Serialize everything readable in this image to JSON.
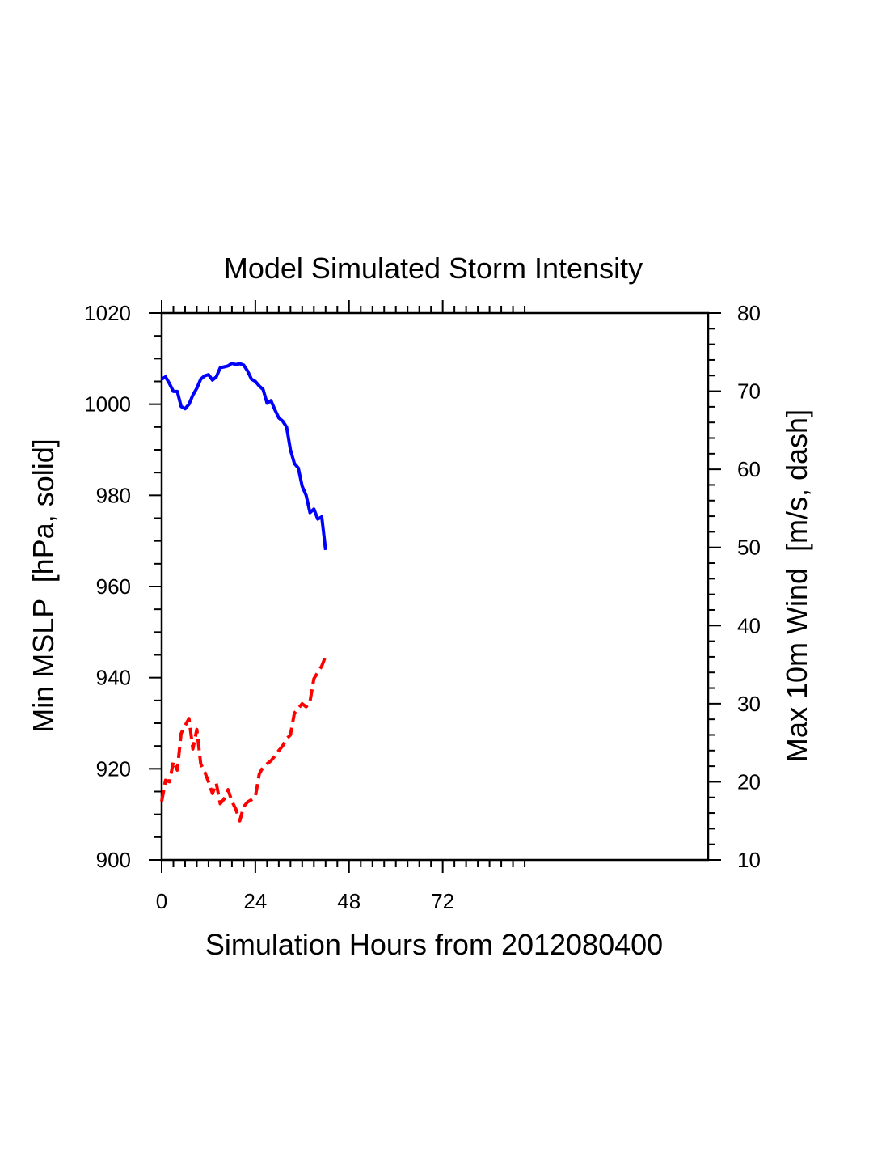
{
  "chart_data": {
    "type": "line",
    "title": "Model Simulated Storm Intensity",
    "xlabel": "Simulation Hours from 2012080400",
    "ylabel_left": "Min MSLP  [hPa, solid]",
    "ylabel_right": "Max 10m Wind  [m/s, dash]",
    "xlim": [
      0,
      140
    ],
    "ylim_left": [
      900,
      1020
    ],
    "ylim_right": [
      10,
      80
    ],
    "x_ticks": [
      0,
      24,
      48,
      72
    ],
    "y_ticks_left": [
      900,
      920,
      940,
      960,
      980,
      1000,
      1020
    ],
    "y_ticks_right": [
      10,
      20,
      30,
      40,
      50,
      60,
      70,
      80
    ],
    "grid": false,
    "series": [
      {
        "name": "Min MSLP",
        "axis": "left",
        "color": "#0000ff",
        "style": "solid",
        "x": [
          0,
          1,
          2,
          3,
          4,
          5,
          6,
          7,
          8,
          9,
          10,
          11,
          12,
          13,
          14,
          15,
          16,
          17,
          18,
          19,
          20,
          21,
          22,
          23,
          24,
          25,
          26,
          27,
          28,
          29,
          30,
          31,
          32,
          33,
          34,
          35,
          36,
          37,
          38,
          39,
          40,
          41,
          42
        ],
        "values": [
          1005.5,
          1006,
          1004.5,
          1002.8,
          1002.8,
          999.5,
          999,
          1000,
          1002,
          1003.5,
          1005.5,
          1006.2,
          1006.5,
          1005.3,
          1006,
          1008,
          1008.2,
          1008.4,
          1009,
          1008.7,
          1008.9,
          1008.6,
          1007.3,
          1005.5,
          1005,
          1004,
          1003.2,
          1000.2,
          1000.8,
          998.8,
          997,
          996.3,
          995,
          990,
          987,
          986,
          982,
          980,
          976.2,
          977,
          974.8,
          975.3,
          968
        ]
      },
      {
        "name": "Max 10m Wind",
        "axis": "right",
        "color": "#ff0000",
        "style": "dashed",
        "x": [
          0,
          1,
          2,
          3,
          4,
          5,
          6,
          7,
          8,
          9,
          10,
          11,
          12,
          13,
          14,
          15,
          16,
          17,
          18,
          19,
          20,
          21,
          22,
          23,
          24,
          25,
          26,
          27,
          28,
          29,
          30,
          31,
          32,
          33,
          34,
          35,
          36,
          37,
          38,
          39,
          40,
          41,
          42
        ],
        "values": [
          17.5,
          20.2,
          20,
          22.6,
          21.5,
          26.2,
          27.2,
          28.1,
          24.2,
          26.7,
          22.3,
          21.3,
          20,
          18.5,
          19.8,
          17.2,
          17.8,
          19,
          17.5,
          16.5,
          15,
          16.8,
          17.4,
          17.7,
          18.1,
          21,
          21.9,
          22.3,
          22.7,
          23.3,
          24,
          24.6,
          25.5,
          26,
          28.8,
          29.4,
          30,
          29.6,
          30.3,
          33.2,
          34,
          34.8,
          36.1
        ]
      }
    ]
  }
}
